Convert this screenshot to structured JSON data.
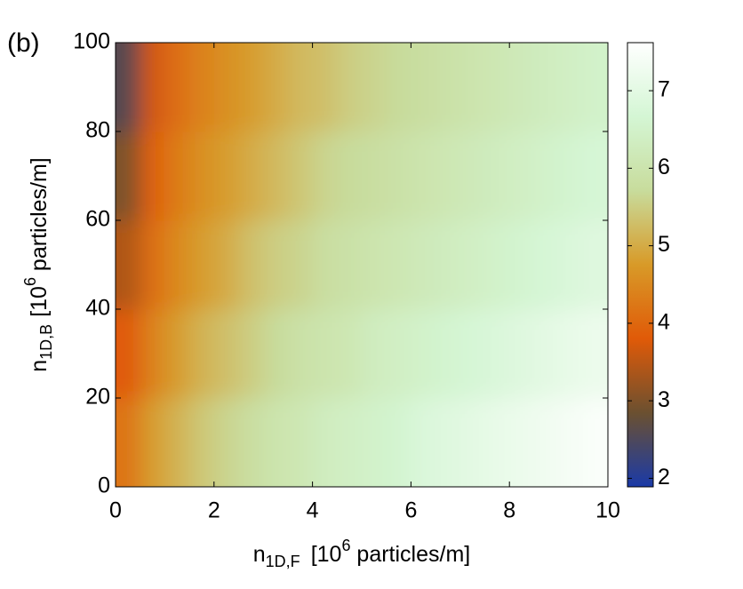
{
  "chart_data": {
    "type": "heatmap",
    "panel_label": "(b)",
    "xlabel": [
      "n",
      "1D,F",
      "[10",
      "6",
      " particles/m]"
    ],
    "ylabel": [
      "n",
      "1D,B",
      "[10",
      "6",
      " particles/m]"
    ],
    "xlim": [
      0,
      10
    ],
    "xticks": [
      0,
      2,
      4,
      6,
      8,
      10
    ],
    "ylim": [
      0,
      100
    ],
    "yticks": [
      0,
      20,
      40,
      60,
      80,
      100
    ],
    "zlim": [
      1.89,
      7.62
    ],
    "zticks": [
      2,
      3,
      4,
      5,
      6,
      7
    ],
    "colormap": [
      "#1a3aa8",
      "#6b5030",
      "#e05a08",
      "#d89a28",
      "#c8dc9c",
      "#d4f6d4",
      "#ffffff"
    ],
    "x": [
      0.25,
      0.75,
      1.25,
      1.75,
      2.25,
      2.75,
      3.25,
      3.75,
      4.25,
      4.75,
      5.25,
      5.75,
      6.25,
      6.75,
      7.25,
      7.75,
      8.25,
      8.75,
      9.25,
      9.75
    ],
    "y": [
      10,
      30,
      50,
      70,
      90
    ],
    "z": [
      [
        4.2,
        4.8,
        5.1,
        5.4,
        5.6,
        5.8,
        6.0,
        6.1,
        6.3,
        6.4,
        6.5,
        6.6,
        6.8,
        6.9,
        7.0,
        7.1,
        7.2,
        7.3,
        7.4,
        7.5
      ],
      [
        3.8,
        4.4,
        4.8,
        5.1,
        5.3,
        5.5,
        5.7,
        5.9,
        6.0,
        6.1,
        6.3,
        6.4,
        6.5,
        6.6,
        6.7,
        6.8,
        6.9,
        7.0,
        7.1,
        7.2
      ],
      [
        3.4,
        4.1,
        4.5,
        4.8,
        5.0,
        5.3,
        5.5,
        5.6,
        5.8,
        5.9,
        6.0,
        6.1,
        6.2,
        6.3,
        6.4,
        6.5,
        6.6,
        6.7,
        6.8,
        6.9
      ],
      [
        3.0,
        3.9,
        4.3,
        4.6,
        4.8,
        5.0,
        5.2,
        5.4,
        5.6,
        5.7,
        5.8,
        5.9,
        6.0,
        6.1,
        6.2,
        6.3,
        6.4,
        6.5,
        6.6,
        6.7
      ],
      [
        2.6,
        3.7,
        4.1,
        4.4,
        4.6,
        4.8,
        5.0,
        5.2,
        5.3,
        5.5,
        5.6,
        5.7,
        5.8,
        5.9,
        6.0,
        6.1,
        6.2,
        6.3,
        6.4,
        6.5
      ]
    ]
  }
}
